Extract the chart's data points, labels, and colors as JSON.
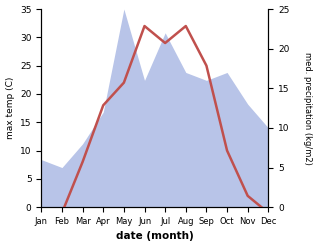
{
  "months": [
    "Jan",
    "Feb",
    "Mar",
    "Apr",
    "May",
    "Jun",
    "Jul",
    "Aug",
    "Sep",
    "Oct",
    "Nov",
    "Dec"
  ],
  "temperature": [
    -1,
    -1,
    8,
    18,
    22,
    32,
    29,
    32,
    25,
    10,
    2,
    -1
  ],
  "precipitation": [
    6,
    5,
    8,
    12,
    25,
    16,
    22,
    17,
    16,
    17,
    13,
    10
  ],
  "temp_ylim": [
    0,
    35
  ],
  "precip_ylim": [
    0,
    25
  ],
  "temp_yticks": [
    0,
    5,
    10,
    15,
    20,
    25,
    30,
    35
  ],
  "precip_yticks": [
    0,
    5,
    10,
    15,
    20,
    25
  ],
  "temp_color": "#c0504d",
  "precip_fill_color": "#b8c4e8",
  "xlabel": "date (month)",
  "ylabel_left": "max temp (C)",
  "ylabel_right": "med. precipitation (kg/m2)",
  "background_color": "#ffffff"
}
